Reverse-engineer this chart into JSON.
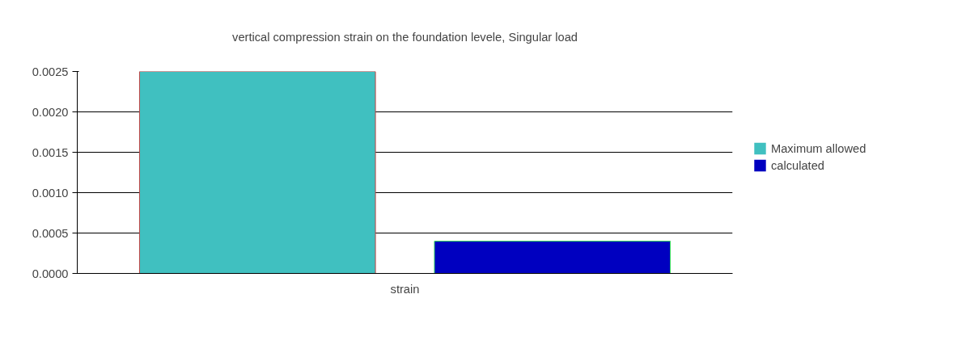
{
  "chart_data": {
    "type": "bar",
    "title": "vertical compression strain on the foundation levele, Singular load",
    "categories": [
      "strain"
    ],
    "series": [
      {
        "name": "Maximum allowed",
        "color": "#40c0c0",
        "values": [
          0.0025
        ]
      },
      {
        "name": "calculated",
        "color": "#0000c0",
        "values": [
          0.0004
        ]
      }
    ],
    "ylim": [
      0,
      0.0025
    ],
    "yticks": [
      {
        "value": 0,
        "label": "0.0000"
      },
      0.0005,
      {
        "value": 0.001,
        "label": "0.0010"
      },
      0.0015,
      {
        "value": 0.002,
        "label": "0.0020"
      },
      0.0025
    ],
    "grid": "y",
    "legend": "right"
  }
}
